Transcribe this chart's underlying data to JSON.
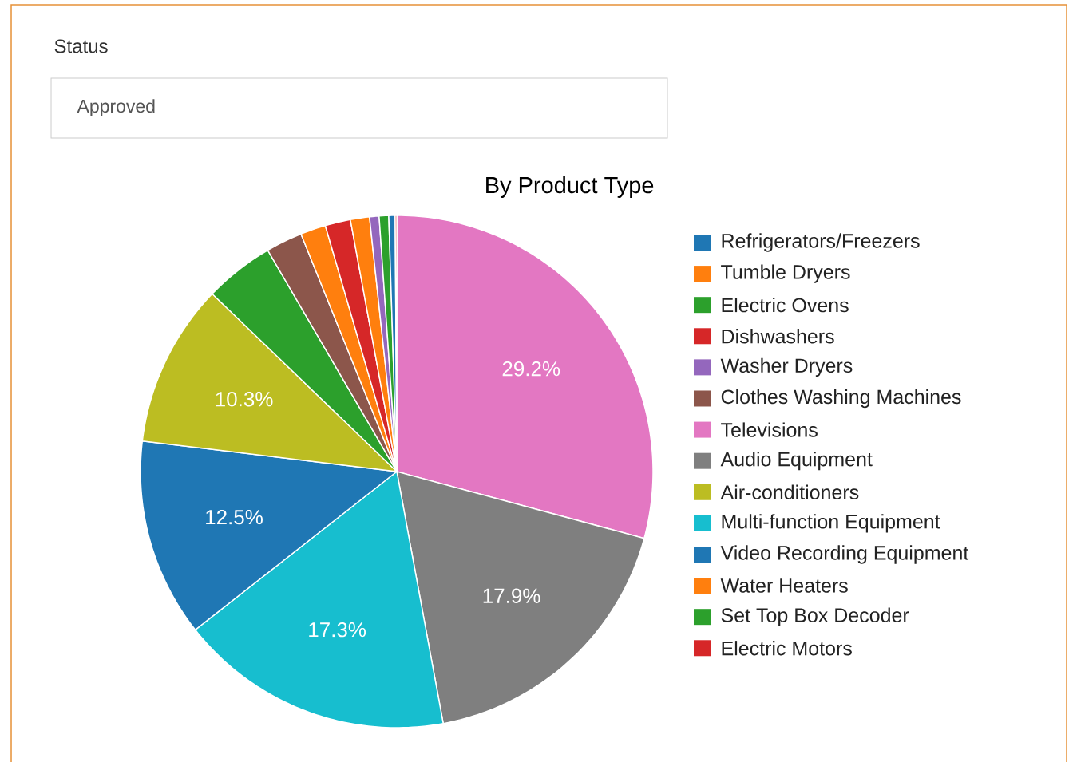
{
  "chart_data": {
    "type": "pie",
    "title": "By Product Type",
    "annotations": [
      "Status",
      "Approved"
    ],
    "categories": [
      "Refrigerators/Freezers",
      "Tumble Dryers",
      "Electric Ovens",
      "Dishwashers",
      "Washer Dryers",
      "Clothes Washing Machines",
      "Televisions",
      "Audio Equipment",
      "Air-conditioners",
      "Multi-function Equipment",
      "Video Recording Equipment",
      "Water Heaters",
      "Set Top Box Decoder",
      "Electric Motors"
    ],
    "values": [
      0.4,
      1.6,
      4.4,
      1.6,
      0.6,
      2.3,
      29.2,
      17.9,
      10.3,
      17.3,
      12.5,
      1.2,
      0.6,
      0.1
    ],
    "value_labels": [
      null,
      null,
      null,
      null,
      null,
      null,
      "29.2%",
      "17.9%",
      "10.3%",
      "17.3%",
      "12.5%",
      null,
      null,
      null
    ],
    "colors": [
      "#1f77b4",
      "#ff7f0e",
      "#2ca02c",
      "#d62728",
      "#9467bd",
      "#8c564b",
      "#e377c2",
      "#7f7f7f",
      "#bcbd22",
      "#17becf",
      "#1f77b4",
      "#ff7f0e",
      "#2ca02c",
      "#d62728"
    ],
    "legend": "right"
  }
}
